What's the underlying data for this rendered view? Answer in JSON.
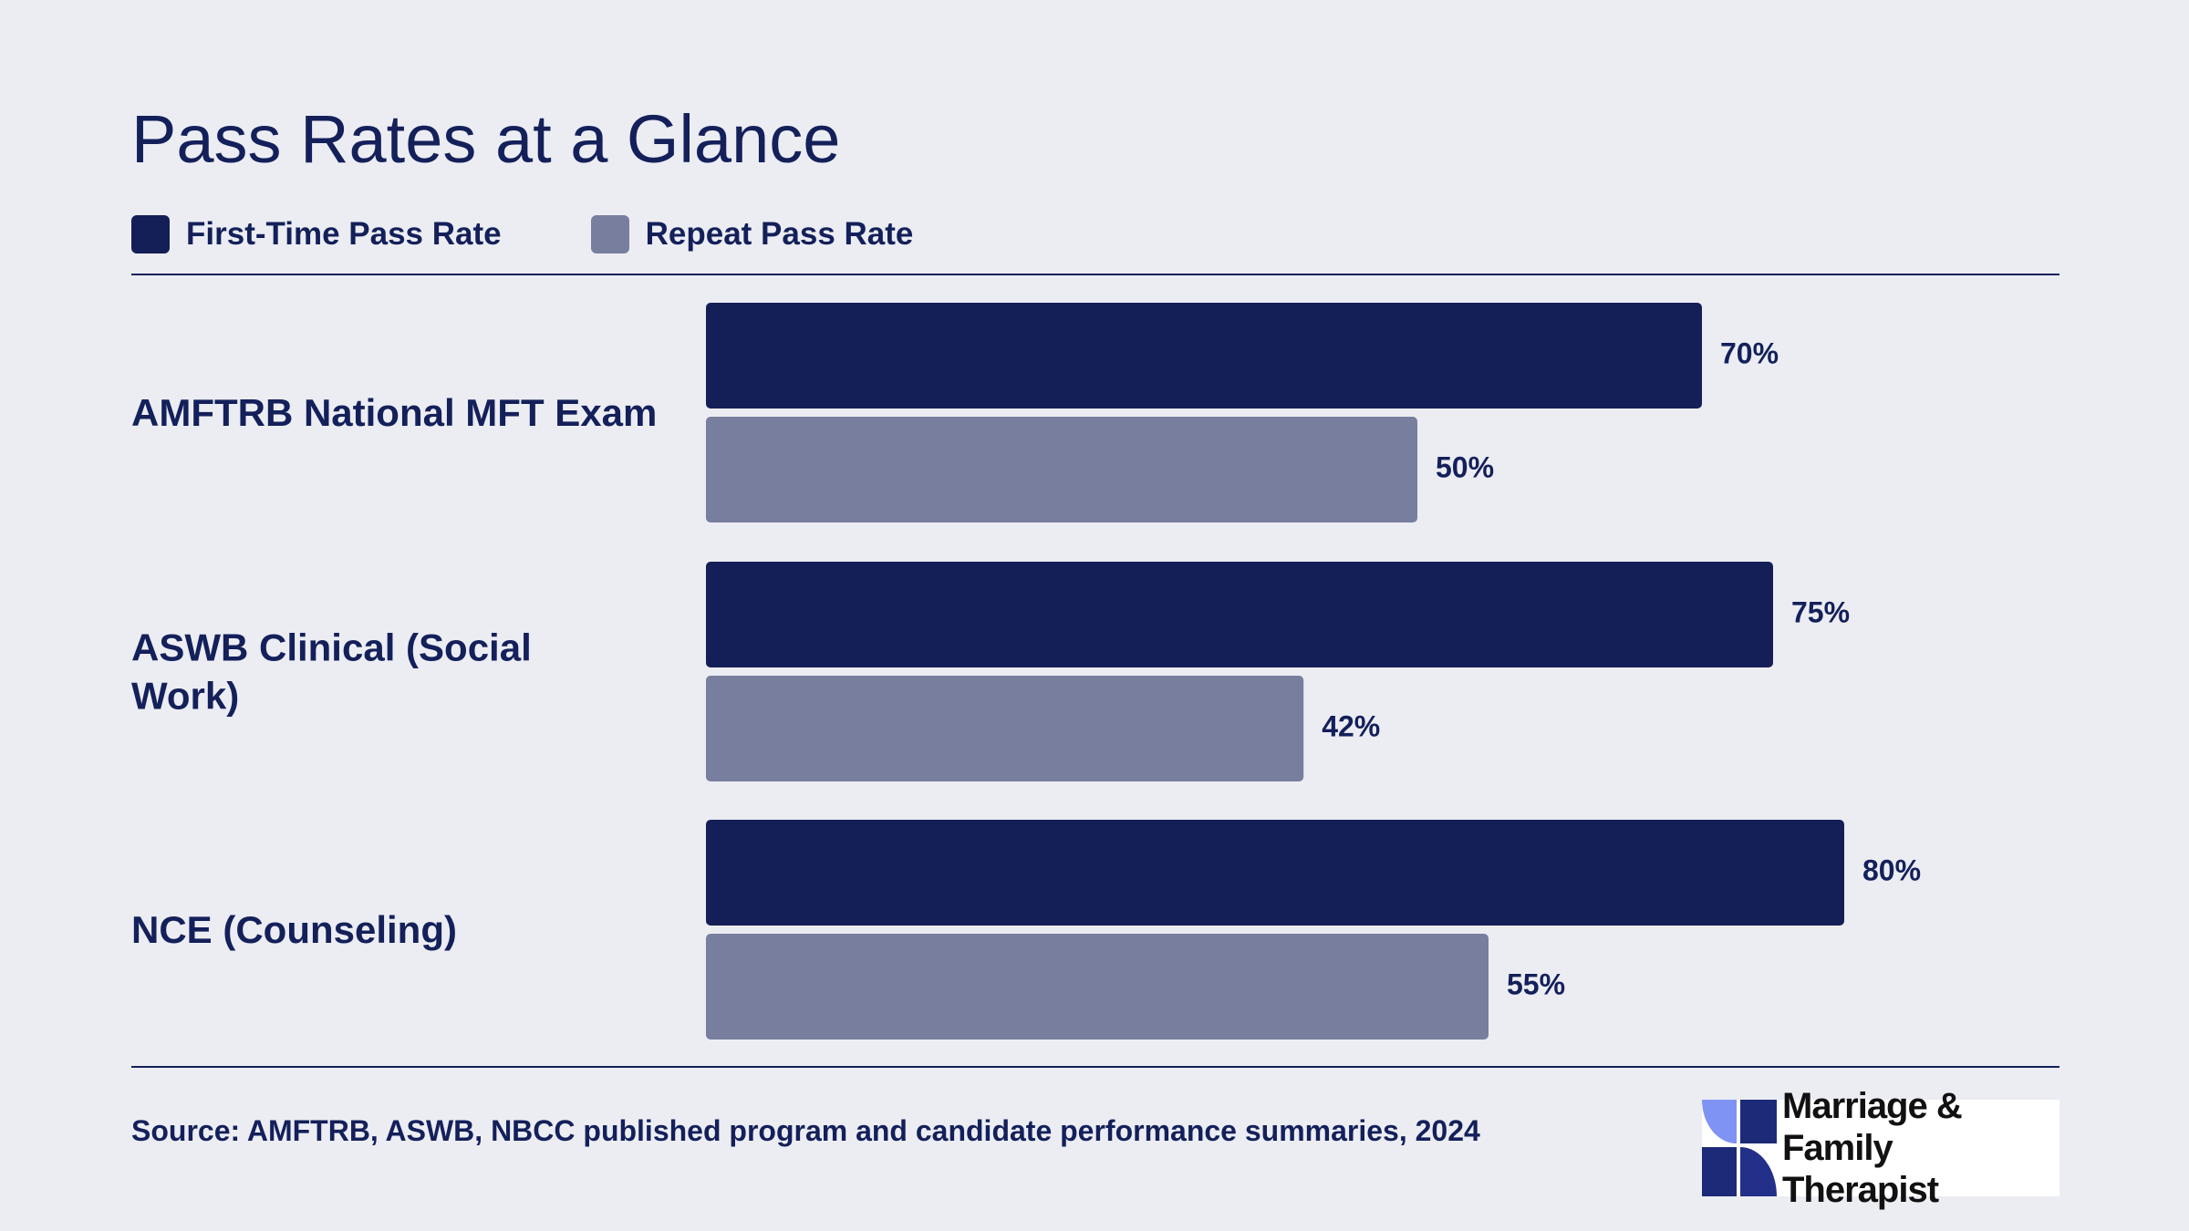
{
  "title": "Pass Rates at a Glance",
  "legend": [
    {
      "label": "First-Time Pass Rate",
      "color": "#141f57"
    },
    {
      "label": "Repeat Pass Rate",
      "color": "#787e9e"
    }
  ],
  "chart_data": {
    "type": "bar",
    "orientation": "horizontal",
    "categories": [
      "AMFTRB National MFT Exam",
      "ASWB Clinical (Social Work)",
      "NCE (Counseling)"
    ],
    "series": [
      {
        "name": "First-Time Pass Rate",
        "values": [
          70,
          75,
          80
        ],
        "labels": [
          "70%",
          "75%",
          "80%"
        ],
        "color": "#141f57"
      },
      {
        "name": "Repeat Pass Rate",
        "values": [
          50,
          42,
          55
        ],
        "labels": [
          "50%",
          "42%",
          "55%"
        ],
        "color": "#787e9e"
      }
    ],
    "xlim": [
      0,
      100
    ],
    "unit": "%",
    "grid": false,
    "legend_position": "top-left"
  },
  "source": "Source: AMFTRB, ASWB, NBCC published program and candidate performance summaries, 2024",
  "logo": {
    "line1": "Marriage & Family",
    "line2": "Therapist"
  }
}
